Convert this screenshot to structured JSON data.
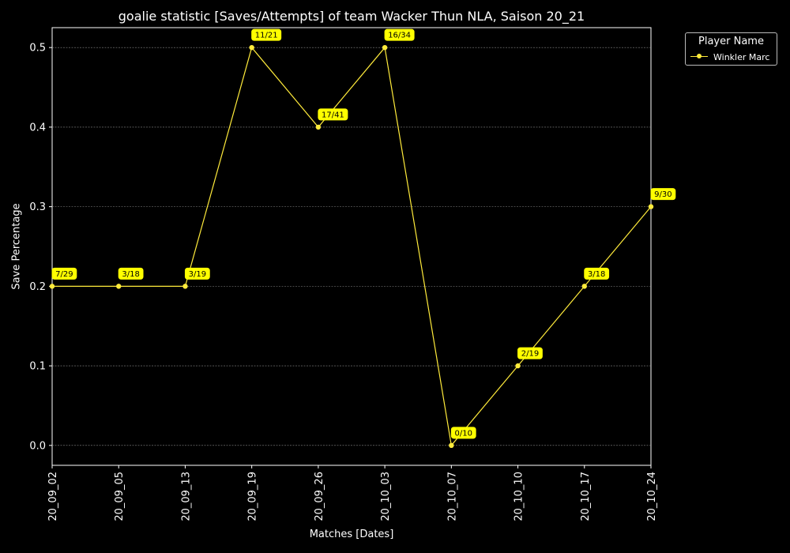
{
  "chart_data": {
    "type": "line",
    "title": "goalie statistic [Saves/Attempts] of team Wacker Thun NLA, Saison 20_21",
    "xlabel": "Matches [Dates]",
    "ylabel": "Save Percentage",
    "categories": [
      "20_09_02",
      "20_09_05",
      "20_09_13",
      "20_09_19",
      "20_09_26",
      "20_10_03",
      "20_10_07",
      "20_10_10",
      "20_10_17",
      "20_10_24"
    ],
    "ylim": [
      -0.025,
      0.525
    ],
    "yticks": [
      "0.0",
      "0.1",
      "0.2",
      "0.3",
      "0.4",
      "0.5"
    ],
    "grid": true,
    "legend_title": "Player Name",
    "legend_position": "outside-top-right",
    "series": [
      {
        "name": "Winkler Marc",
        "color": "#ffeb3b",
        "values": [
          0.2,
          0.2,
          0.2,
          0.5,
          0.4,
          0.5,
          0.0,
          0.1,
          0.2,
          0.3
        ],
        "labels": [
          "7/29",
          "3/18",
          "3/19",
          "11/21",
          "17/41",
          "16/34",
          "0/10",
          "2/19",
          "3/18",
          "9/30"
        ]
      }
    ]
  }
}
